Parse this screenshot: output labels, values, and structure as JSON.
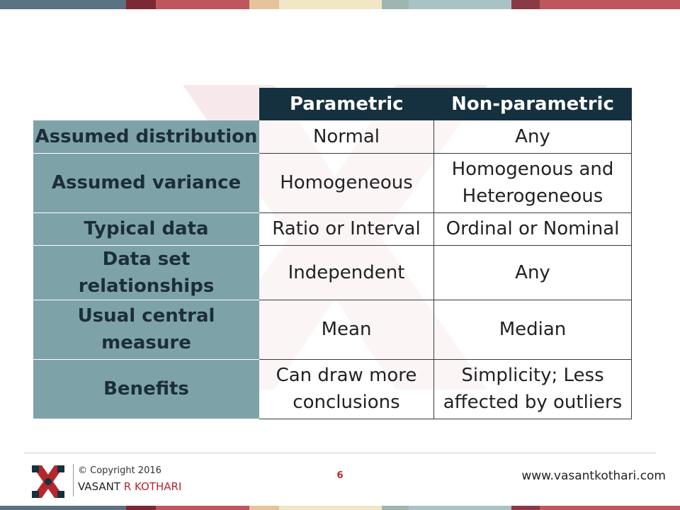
{
  "table": {
    "headers": [
      "Parametric",
      "Non-parametric"
    ],
    "rows": [
      {
        "label": "Assumed distribution",
        "parametric": "Normal",
        "nonparametric": "Any"
      },
      {
        "label": "Assumed variance",
        "parametric": "Homogeneous",
        "nonparametric": "Homogenous and Heterogeneous"
      },
      {
        "label": "Typical data",
        "parametric": "Ratio or Interval",
        "nonparametric": "Ordinal or Nominal"
      },
      {
        "label": "Data set relationships",
        "parametric": "Independent",
        "nonparametric": "Any"
      },
      {
        "label": "Usual central measure",
        "parametric": "Mean",
        "nonparametric": "Median"
      },
      {
        "label": "Benefits",
        "parametric": "Can draw more conclusions",
        "nonparametric": "Simplicity; Less affected by outliers"
      }
    ]
  },
  "footer": {
    "copyright_symbol": "©",
    "copyright": "Copyright 2016",
    "name_first": "VASANT",
    "name_initial": "R",
    "name_last": "KOTHARI",
    "page_number": "6",
    "website": "www.vasantkothari.com"
  },
  "colors": {
    "header_bg": "#15303f",
    "rowhead_bg": "#7da3a8",
    "accent_red": "#b5272d"
  }
}
